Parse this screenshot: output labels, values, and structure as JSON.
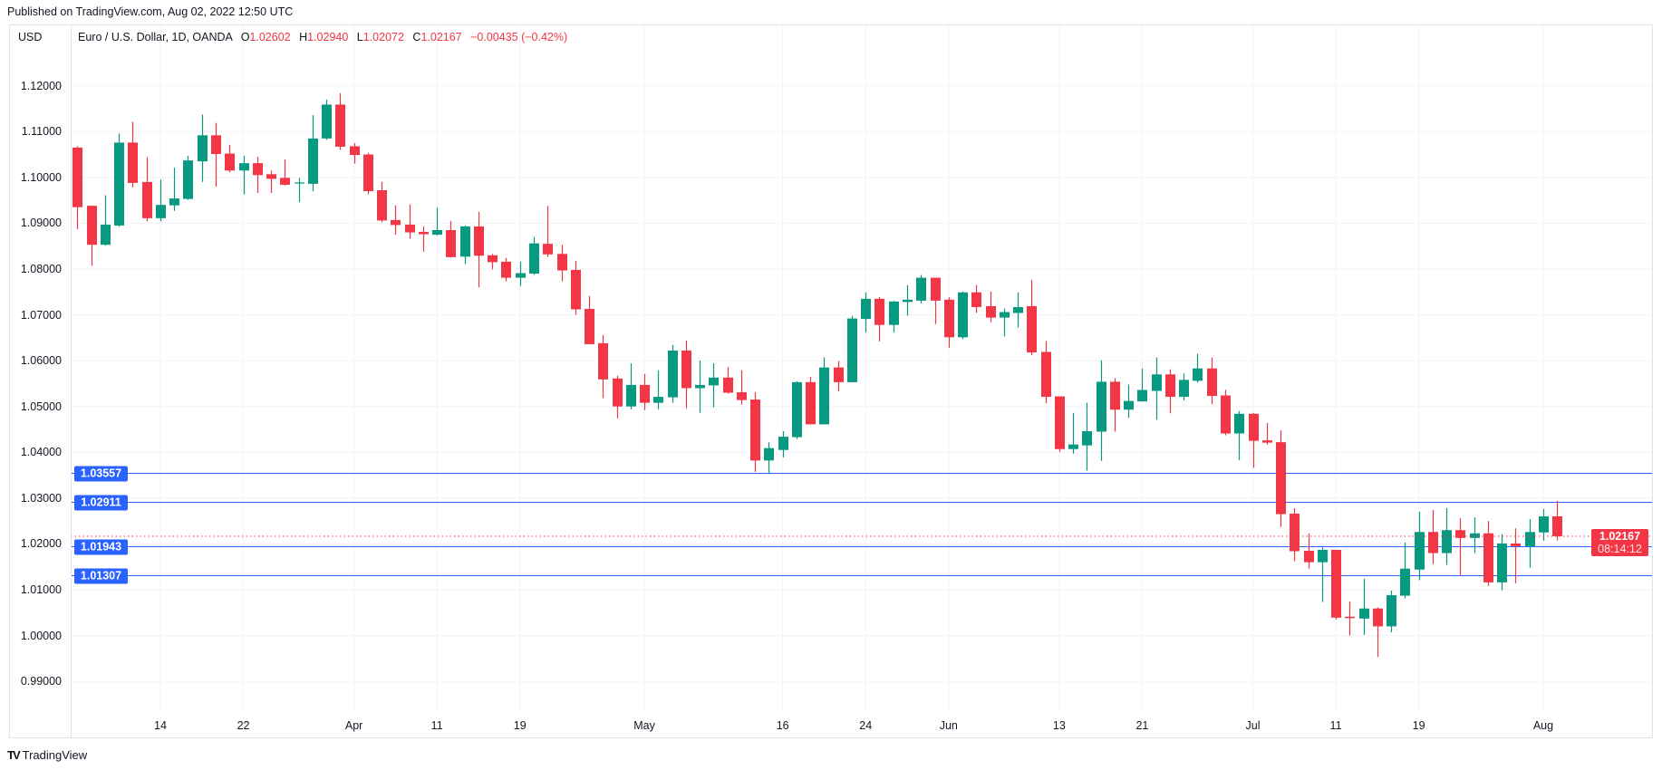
{
  "header": {
    "published": "Published on TradingView.com, Aug 02, 2022 12:50 UTC"
  },
  "legend": {
    "currency": "USD",
    "symbol": "Euro / U.S. Dollar, 1D, OANDA",
    "o_label": "O",
    "o": "1.02602",
    "h_label": "H",
    "h": "1.02940",
    "l_label": "L",
    "l": "1.02072",
    "c_label": "C",
    "c": "1.02167",
    "change": "−0.00435 (−0.42%)"
  },
  "footer": {
    "logo_mark": "TV",
    "logo_text": "TradingView"
  },
  "colors": {
    "up": "#089981",
    "down": "#f23645",
    "line": "#2962ff",
    "grid": "#f0f3fa"
  },
  "chart_data": {
    "type": "candlestick",
    "symbol": "EUR/USD",
    "interval": "1D",
    "ylim": [
      0.985,
      1.122
    ],
    "grid": true,
    "price_axis": "left",
    "price_ticks": [
      "1.12000",
      "1.11000",
      "1.10000",
      "1.09000",
      "1.08000",
      "1.07000",
      "1.06000",
      "1.05000",
      "1.04000",
      "1.03000",
      "1.02000",
      "1.01000",
      "1.00000",
      "0.99000"
    ],
    "x_ticks": [
      {
        "label": "14",
        "date": "2022-03-14"
      },
      {
        "label": "22",
        "date": "2022-03-22"
      },
      {
        "label": "Apr",
        "date": "2022-04-01"
      },
      {
        "label": "11",
        "date": "2022-04-11"
      },
      {
        "label": "19",
        "date": "2022-04-19"
      },
      {
        "label": "May",
        "date": "2022-05-02"
      },
      {
        "label": "16",
        "date": "2022-05-16"
      },
      {
        "label": "24",
        "date": "2022-05-24"
      },
      {
        "label": "Jun",
        "date": "2022-06-01"
      },
      {
        "label": "13",
        "date": "2022-06-13"
      },
      {
        "label": "21",
        "date": "2022-06-21"
      },
      {
        "label": "Jul",
        "date": "2022-07-01"
      },
      {
        "label": "11",
        "date": "2022-07-11"
      },
      {
        "label": "19",
        "date": "2022-07-19"
      },
      {
        "label": "Aug",
        "date": "2022-08-01"
      }
    ],
    "horizontal_lines": [
      {
        "price": 1.03557,
        "label": "1.03557"
      },
      {
        "price": 1.02911,
        "label": "1.02911"
      },
      {
        "price": 1.01943,
        "label": "1.01943"
      },
      {
        "price": 1.01307,
        "label": "1.01307"
      }
    ],
    "last_price": {
      "price": 1.02167,
      "label": "1.02167",
      "countdown": "08:14:12"
    },
    "candles": [
      [
        "2022-03-04",
        1.1065,
        1.1068,
        1.0887,
        1.0935
      ],
      [
        "2022-03-07",
        1.0938,
        1.0938,
        1.0807,
        1.0853
      ],
      [
        "2022-03-08",
        1.0853,
        1.0961,
        1.0851,
        1.0897
      ],
      [
        "2022-03-09",
        1.0895,
        1.1096,
        1.0892,
        1.1076
      ],
      [
        "2022-03-10",
        1.1076,
        1.1121,
        1.0978,
        1.0988
      ],
      [
        "2022-03-11",
        1.099,
        1.1044,
        1.0904,
        1.0911
      ],
      [
        "2022-03-14",
        1.0911,
        1.0995,
        1.0904,
        1.094
      ],
      [
        "2022-03-15",
        1.0939,
        1.1021,
        1.0927,
        1.0954
      ],
      [
        "2022-03-16",
        1.0953,
        1.1047,
        1.0951,
        1.1037
      ],
      [
        "2022-03-17",
        1.1035,
        1.1137,
        1.099,
        1.1092
      ],
      [
        "2022-03-18",
        1.1092,
        1.1119,
        1.098,
        1.1051
      ],
      [
        "2022-03-21",
        1.1052,
        1.1071,
        1.1011,
        1.1015
      ],
      [
        "2022-03-22",
        1.1015,
        1.1047,
        1.0963,
        1.1031
      ],
      [
        "2022-03-23",
        1.1031,
        1.1045,
        1.0966,
        1.1005
      ],
      [
        "2022-03-24",
        1.1007,
        1.1015,
        1.0966,
        1.0997
      ],
      [
        "2022-03-25",
        1.0999,
        1.1039,
        1.0982,
        1.0984
      ],
      [
        "2022-03-28",
        1.0987,
        1.0999,
        1.0946,
        1.0989
      ],
      [
        "2022-03-29",
        1.0986,
        1.1136,
        1.097,
        1.1085
      ],
      [
        "2022-03-30",
        1.1085,
        1.117,
        1.1082,
        1.1159
      ],
      [
        "2022-03-31",
        1.1159,
        1.1184,
        1.106,
        1.1067
      ],
      [
        "2022-04-01",
        1.1068,
        1.1075,
        1.103,
        1.1049
      ],
      [
        "2022-04-04",
        1.105,
        1.1054,
        1.0963,
        1.097
      ],
      [
        "2022-04-05",
        1.0972,
        1.099,
        1.0902,
        1.0906
      ],
      [
        "2022-04-06",
        1.0907,
        1.0939,
        1.0875,
        1.0896
      ],
      [
        "2022-04-07",
        1.0897,
        1.0941,
        1.0866,
        1.088
      ],
      [
        "2022-04-08",
        1.0881,
        1.0893,
        1.0838,
        1.0876
      ],
      [
        "2022-04-11",
        1.0875,
        1.0934,
        1.0873,
        1.0885
      ],
      [
        "2022-04-12",
        1.0885,
        1.0905,
        1.0825,
        1.0826
      ],
      [
        "2022-04-13",
        1.0827,
        1.0895,
        1.0811,
        1.0893
      ],
      [
        "2022-04-14",
        1.0893,
        1.0925,
        1.076,
        1.0829
      ],
      [
        "2022-04-15",
        1.083,
        1.0833,
        1.0799,
        1.0815
      ],
      [
        "2022-04-18",
        1.0816,
        1.0824,
        1.0773,
        1.0781
      ],
      [
        "2022-04-19",
        1.0781,
        1.0816,
        1.0763,
        1.0791
      ],
      [
        "2022-04-20",
        1.079,
        1.087,
        1.0787,
        1.0856
      ],
      [
        "2022-04-21",
        1.0855,
        1.0938,
        1.0826,
        1.0832
      ],
      [
        "2022-04-22",
        1.0833,
        1.0853,
        1.0773,
        1.0797
      ],
      [
        "2022-04-25",
        1.0798,
        1.0818,
        1.07,
        1.0712
      ],
      [
        "2022-04-26",
        1.0713,
        1.0741,
        1.0636,
        1.0636
      ],
      [
        "2022-04-27",
        1.0638,
        1.0656,
        1.0518,
        1.0559
      ],
      [
        "2022-04-28",
        1.0561,
        1.0567,
        1.0474,
        1.05
      ],
      [
        "2022-04-29",
        1.05,
        1.0594,
        1.0494,
        1.0547
      ],
      [
        "2022-05-02",
        1.0547,
        1.0571,
        1.0492,
        1.0508
      ],
      [
        "2022-05-03",
        1.0508,
        1.0579,
        1.0494,
        1.0521
      ],
      [
        "2022-05-04",
        1.052,
        1.0634,
        1.0508,
        1.0622
      ],
      [
        "2022-05-05",
        1.0622,
        1.0644,
        1.0496,
        1.054
      ],
      [
        "2022-05-06",
        1.054,
        1.06,
        1.0486,
        1.0547
      ],
      [
        "2022-05-09",
        1.0546,
        1.0594,
        1.0498,
        1.0563
      ],
      [
        "2022-05-10",
        1.0563,
        1.0586,
        1.0528,
        1.053
      ],
      [
        "2022-05-11",
        1.0531,
        1.0579,
        1.0504,
        1.0514
      ],
      [
        "2022-05-12",
        1.0515,
        1.0531,
        1.0357,
        1.0382
      ],
      [
        "2022-05-13",
        1.0382,
        1.0422,
        1.0353,
        1.0409
      ],
      [
        "2022-05-16",
        1.0405,
        1.0446,
        1.0389,
        1.0434
      ],
      [
        "2022-05-17",
        1.0433,
        1.0555,
        1.0429,
        1.0553
      ],
      [
        "2022-05-18",
        1.0553,
        1.0565,
        1.0461,
        1.0461
      ],
      [
        "2022-05-19",
        1.0461,
        1.0607,
        1.0461,
        1.0585
      ],
      [
        "2022-05-20",
        1.0585,
        1.0599,
        1.0533,
        1.0553
      ],
      [
        "2022-05-23",
        1.0553,
        1.0698,
        1.0553,
        1.0692
      ],
      [
        "2022-05-24",
        1.0691,
        1.0749,
        1.0662,
        1.0735
      ],
      [
        "2022-05-25",
        1.0735,
        1.0739,
        1.0642,
        1.0678
      ],
      [
        "2022-05-26",
        1.0678,
        1.0731,
        1.0662,
        1.0729
      ],
      [
        "2022-05-27",
        1.0728,
        1.0765,
        1.0698,
        1.0733
      ],
      [
        "2022-05-30",
        1.0731,
        1.0787,
        1.0725,
        1.0781
      ],
      [
        "2022-05-31",
        1.0781,
        1.0781,
        1.068,
        1.0731
      ],
      [
        "2022-06-01",
        1.0733,
        1.0739,
        1.0628,
        1.0651
      ],
      [
        "2022-06-02",
        1.0651,
        1.0751,
        1.0647,
        1.0749
      ],
      [
        "2022-06-03",
        1.0749,
        1.0765,
        1.0704,
        1.0717
      ],
      [
        "2022-06-06",
        1.0719,
        1.0751,
        1.0684,
        1.0694
      ],
      [
        "2022-06-07",
        1.0694,
        1.0714,
        1.0653,
        1.0706
      ],
      [
        "2022-06-08",
        1.0704,
        1.0749,
        1.0672,
        1.0717
      ],
      [
        "2022-06-09",
        1.0719,
        1.0776,
        1.0612,
        1.0618
      ],
      [
        "2022-06-10",
        1.0619,
        1.0643,
        1.0507,
        1.0521
      ],
      [
        "2022-06-13",
        1.0522,
        1.0522,
        1.0401,
        1.0407
      ],
      [
        "2022-06-14",
        1.0407,
        1.0486,
        1.0397,
        1.0417
      ],
      [
        "2022-06-15",
        1.0415,
        1.0508,
        1.036,
        1.0446
      ],
      [
        "2022-06-16",
        1.0445,
        1.0601,
        1.0381,
        1.0554
      ],
      [
        "2022-06-17",
        1.0554,
        1.0562,
        1.0445,
        1.0493
      ],
      [
        "2022-06-20",
        1.0493,
        1.0548,
        1.0475,
        1.0512
      ],
      [
        "2022-06-21",
        1.0511,
        1.0583,
        1.0511,
        1.0536
      ],
      [
        "2022-06-22",
        1.0534,
        1.0607,
        1.0471,
        1.057
      ],
      [
        "2022-06-23",
        1.057,
        1.0581,
        1.0485,
        1.0521
      ],
      [
        "2022-06-24",
        1.0521,
        1.0572,
        1.0513,
        1.0558
      ],
      [
        "2022-06-27",
        1.0556,
        1.0615,
        1.0552,
        1.0583
      ],
      [
        "2022-06-28",
        1.0583,
        1.0607,
        1.0505,
        1.0523
      ],
      [
        "2022-06-29",
        1.0524,
        1.0536,
        1.0437,
        1.0441
      ],
      [
        "2022-06-30",
        1.0441,
        1.049,
        1.0383,
        1.0484
      ],
      [
        "2022-07-01",
        1.0484,
        1.0486,
        1.0366,
        1.0425
      ],
      [
        "2022-07-04",
        1.0426,
        1.0464,
        1.0417,
        1.0421
      ],
      [
        "2022-07-05",
        1.0422,
        1.0448,
        1.0237,
        1.0265
      ],
      [
        "2022-07-06",
        1.0266,
        1.0278,
        1.0162,
        1.0184
      ],
      [
        "2022-07-07",
        1.0185,
        1.0223,
        1.0146,
        1.016
      ],
      [
        "2022-07-08",
        1.016,
        1.0193,
        1.0073,
        1.0187
      ],
      [
        "2022-07-11",
        1.0187,
        1.0187,
        1.0035,
        1.0039
      ],
      [
        "2022-07-12",
        1.0041,
        1.0074,
        1.0,
        1.0038
      ],
      [
        "2022-07-13",
        1.0037,
        1.0124,
        1.0001,
        1.0059
      ],
      [
        "2022-07-14",
        1.0059,
        1.0061,
        0.9953,
        1.002
      ],
      [
        "2022-07-15",
        1.002,
        1.0098,
        1.0007,
        1.0088
      ],
      [
        "2022-07-18",
        1.0087,
        1.0203,
        1.0081,
        1.0146
      ],
      [
        "2022-07-19",
        1.0144,
        1.027,
        1.0121,
        1.0226
      ],
      [
        "2022-07-20",
        1.0226,
        1.0274,
        1.0156,
        1.018
      ],
      [
        "2022-07-21",
        1.018,
        1.0278,
        1.0154,
        1.023
      ],
      [
        "2022-07-22",
        1.023,
        1.0256,
        1.013,
        1.0213
      ],
      [
        "2022-07-25",
        1.0213,
        1.0258,
        1.018,
        1.0223
      ],
      [
        "2022-07-26",
        1.0223,
        1.025,
        1.0108,
        1.0116
      ],
      [
        "2022-07-27",
        1.0116,
        1.0221,
        1.0099,
        1.0201
      ],
      [
        "2022-07-28",
        1.0201,
        1.0234,
        1.0114,
        1.0195
      ],
      [
        "2022-07-29",
        1.0195,
        1.0254,
        1.0148,
        1.0226
      ],
      [
        "2022-08-01",
        1.0225,
        1.0276,
        1.0207,
        1.026
      ],
      [
        "2022-08-02",
        1.02602,
        1.0294,
        1.02072,
        1.02167
      ]
    ]
  }
}
